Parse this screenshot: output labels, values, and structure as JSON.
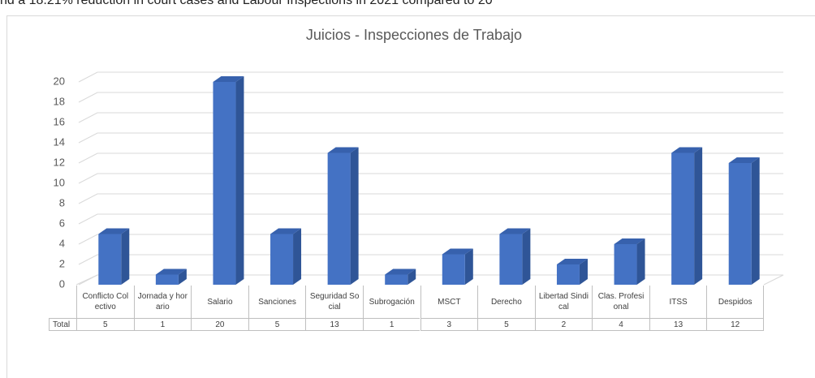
{
  "page_text": "nd a 18.21% reduction in court cases and Labour Inspections in 2021 compared to 20",
  "chart_data": {
    "type": "bar3d",
    "title": "Juicios - Inspecciones de Trabajo",
    "categories": [
      "Conflicto Colectivo",
      "Jornada y horario",
      "Salario",
      "Sanciones",
      "Seguridad Social",
      "Subrogación",
      "MSCT",
      "Derecho",
      "Libertad Sindical",
      "Clas. Profesional",
      "ITSS",
      "Despidos"
    ],
    "series": [
      {
        "name": "Total",
        "color": "#4472c4",
        "values": [
          5,
          1,
          20,
          5,
          13,
          1,
          3,
          5,
          2,
          4,
          13,
          12
        ]
      }
    ],
    "ylim": [
      0,
      20
    ],
    "yticks": [
      0,
      2,
      4,
      6,
      8,
      10,
      12,
      14,
      16,
      18,
      20
    ],
    "grid": true,
    "data_table": true
  }
}
